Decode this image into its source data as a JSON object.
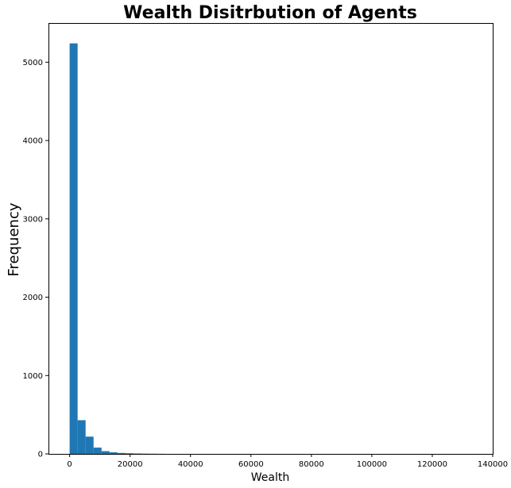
{
  "chart_data": {
    "type": "bar",
    "title": "Wealth Disitrbution of Agents",
    "xlabel": "Wealth",
    "ylabel": "Frequency",
    "xlim": [
      -7000,
      140000
    ],
    "ylim": [
      0,
      5500
    ],
    "x_ticks": [
      0,
      20000,
      40000,
      60000,
      80000,
      100000,
      120000,
      140000
    ],
    "y_ticks": [
      0,
      1000,
      2000,
      3000,
      4000,
      5000
    ],
    "bin_width": 2640,
    "bin_start": 0,
    "values": [
      5240,
      430,
      220,
      80,
      35,
      20,
      12,
      8,
      5,
      3,
      2,
      1
    ],
    "color": "#1f77b4",
    "grid": false
  }
}
